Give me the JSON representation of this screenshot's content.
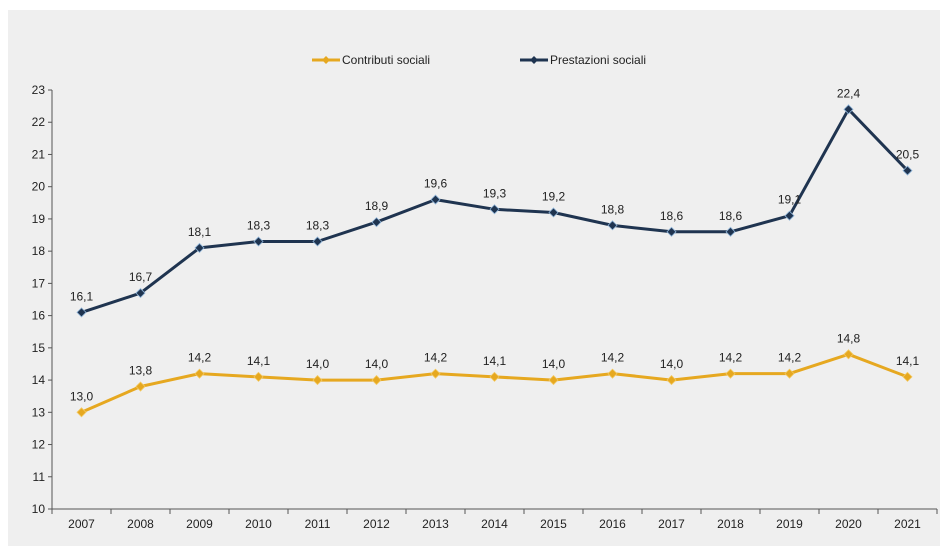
{
  "chart_data": {
    "type": "line",
    "title": "",
    "xlabel": "",
    "ylabel": "",
    "categories": [
      "2007",
      "2008",
      "2009",
      "2010",
      "2011",
      "2012",
      "2013",
      "2014",
      "2015",
      "2016",
      "2017",
      "2018",
      "2019",
      "2020",
      "2021"
    ],
    "ylim": [
      10,
      23
    ],
    "yticks": [
      10,
      11,
      12,
      13,
      14,
      15,
      16,
      17,
      18,
      19,
      20,
      21,
      22,
      23
    ],
    "grid": false,
    "legend_position": "top-center",
    "series": [
      {
        "name": "Contributi sociali",
        "color": "#e6a820",
        "values": [
          13.0,
          13.8,
          14.2,
          14.1,
          14.0,
          14.0,
          14.2,
          14.1,
          14.0,
          14.2,
          14.0,
          14.2,
          14.2,
          14.8,
          14.1
        ],
        "labels": [
          "13,0",
          "13,8",
          "14,2",
          "14,1",
          "14,0",
          "14,0",
          "14,2",
          "14,1",
          "14,0",
          "14,2",
          "14,0",
          "14,2",
          "14,2",
          "14,8",
          "14,1"
        ]
      },
      {
        "name": "Prestazioni sociali",
        "color": "#1f3450",
        "values": [
          16.1,
          16.7,
          18.1,
          18.3,
          18.3,
          18.9,
          19.6,
          19.3,
          19.2,
          18.8,
          18.6,
          18.6,
          19.1,
          22.4,
          20.5
        ],
        "labels": [
          "16,1",
          "16,7",
          "18,1",
          "18,3",
          "18,3",
          "18,9",
          "19,6",
          "19,3",
          "19,2",
          "18,8",
          "18,6",
          "18,6",
          "19,1",
          "22,4",
          "20,5"
        ]
      }
    ]
  }
}
